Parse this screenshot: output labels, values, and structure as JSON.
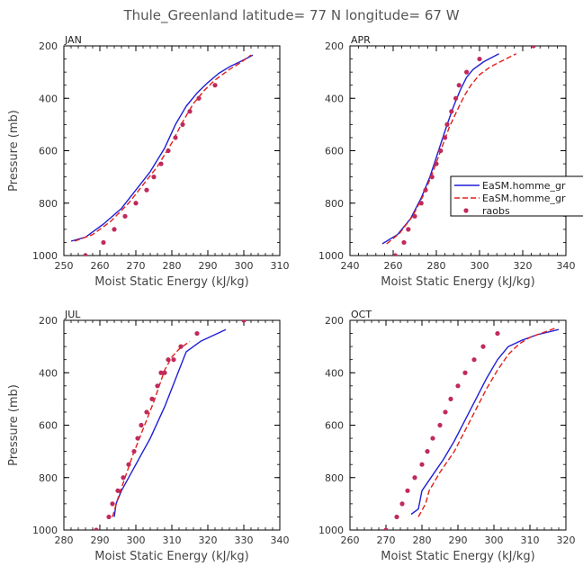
{
  "title": "Thule_Greenland   latitude= 77 N longitude= 67 W",
  "chart_data": [
    {
      "type": "line",
      "panel": "JAN",
      "xlabel": "Moist Static Energy (kJ/kg)",
      "ylabel": "Pressure (mb)",
      "xlim": [
        250,
        310
      ],
      "ylim": [
        1000,
        200
      ],
      "xticks": [
        250,
        260,
        270,
        280,
        290,
        300,
        310
      ],
      "yticks": [
        200,
        400,
        600,
        800,
        1000
      ],
      "series": [
        {
          "name": "EaSM.homme_gr",
          "style": "solid",
          "color": "#1f1fd6",
          "x": [
            252,
            256,
            261,
            266,
            270,
            274,
            278,
            281,
            284,
            287,
            290,
            293,
            296,
            299,
            302.5
          ],
          "y": [
            945,
            930,
            880,
            820,
            750,
            680,
            590,
            500,
            430,
            380,
            340,
            305,
            280,
            260,
            235
          ]
        },
        {
          "name": "EaSM.homme_gr",
          "style": "dashed",
          "color": "#e0201a",
          "x": [
            253,
            258,
            263,
            268,
            272,
            276,
            280,
            283,
            286,
            289,
            292,
            296,
            299,
            302
          ],
          "y": [
            945,
            920,
            870,
            800,
            730,
            660,
            570,
            490,
            420,
            370,
            330,
            290,
            265,
            235
          ]
        },
        {
          "name": "raobs",
          "style": "markers",
          "color": "#c02a5a",
          "x": [
            256,
            261,
            264,
            267,
            270,
            273,
            275,
            277,
            279,
            281,
            283,
            285,
            287.5,
            292
          ],
          "y": [
            1000,
            950,
            900,
            850,
            800,
            750,
            700,
            650,
            600,
            550,
            500,
            450,
            400,
            350
          ]
        }
      ]
    },
    {
      "type": "line",
      "panel": "APR",
      "xlabel": "Moist Static Energy (kJ/kg)",
      "ylabel": "",
      "xlim": [
        240,
        340
      ],
      "ylim": [
        1000,
        200
      ],
      "xticks": [
        240,
        260,
        280,
        300,
        320,
        340
      ],
      "yticks": [
        200,
        400,
        600,
        800,
        1000
      ],
      "series": [
        {
          "name": "EaSM.homme_gr",
          "style": "solid",
          "color": "#1f1fd6",
          "x": [
            255,
            262,
            268,
            273,
            277,
            281,
            285,
            288,
            291,
            294,
            297,
            302,
            309
          ],
          "y": [
            955,
            920,
            860,
            780,
            700,
            600,
            500,
            430,
            370,
            320,
            290,
            260,
            230
          ]
        },
        {
          "name": "EaSM.homme_gr",
          "style": "dashed",
          "color": "#e0201a",
          "x": [
            257,
            263,
            269,
            274,
            278,
            282,
            286,
            290,
            293,
            296,
            300,
            305,
            311,
            317
          ],
          "y": [
            955,
            915,
            850,
            770,
            690,
            600,
            510,
            440,
            390,
            350,
            310,
            280,
            255,
            230
          ]
        },
        {
          "name": "raobs",
          "style": "markers",
          "color": "#c02a5a",
          "x": [
            261,
            265,
            267,
            270,
            273,
            275,
            278,
            280,
            282,
            284,
            285,
            287,
            289,
            290.5,
            294,
            300,
            325
          ],
          "y": [
            1000,
            950,
            900,
            850,
            800,
            750,
            700,
            650,
            600,
            550,
            500,
            450,
            400,
            350,
            300,
            250,
            200
          ]
        }
      ],
      "legend": {
        "location": "right",
        "entries": [
          "EaSM.homme_gr",
          "EaSM.homme_gr",
          "raobs"
        ]
      }
    },
    {
      "type": "line",
      "panel": "JUL",
      "xlabel": "Moist Static Energy (kJ/kg)",
      "ylabel": "Pressure (mb)",
      "xlim": [
        280,
        340
      ],
      "ylim": [
        1000,
        200
      ],
      "xticks": [
        280,
        290,
        300,
        310,
        320,
        330,
        340
      ],
      "yticks": [
        200,
        400,
        600,
        800,
        1000
      ],
      "series": [
        {
          "name": "EaSM.homme_gr",
          "style": "solid",
          "color": "#1f1fd6",
          "x": [
            294,
            294.5,
            296,
            298,
            300,
            302,
            304,
            306,
            308,
            310,
            312,
            314,
            318,
            325
          ],
          "y": [
            950,
            900,
            850,
            800,
            750,
            700,
            650,
            590,
            530,
            460,
            390,
            320,
            280,
            235
          ]
        },
        {
          "name": "EaSM.homme_gr",
          "style": "dashed",
          "color": "#e0201a",
          "x": [
            293.5,
            295,
            297,
            299,
            301,
            303,
            305,
            306.5,
            308,
            310,
            312,
            315
          ],
          "y": [
            950,
            880,
            800,
            720,
            650,
            580,
            510,
            450,
            390,
            340,
            310,
            280
          ]
        },
        {
          "name": "raobs",
          "style": "markers",
          "color": "#c02a5a",
          "x": [
            289,
            292.5,
            293.5,
            295,
            296.5,
            298,
            299.5,
            300.5,
            301.5,
            303,
            304.5,
            306,
            307,
            308,
            309,
            310.5,
            312.5,
            317,
            330
          ],
          "y": [
            1000,
            950,
            900,
            850,
            800,
            750,
            700,
            650,
            600,
            550,
            500,
            450,
            400,
            400,
            350,
            350,
            300,
            250,
            200
          ]
        }
      ]
    },
    {
      "type": "line",
      "panel": "OCT",
      "xlabel": "Moist Static Energy (kJ/kg)",
      "ylabel": "",
      "xlim": [
        260,
        320
      ],
      "ylim": [
        1000,
        200
      ],
      "xticks": [
        260,
        270,
        280,
        290,
        300,
        310,
        320
      ],
      "yticks": [
        200,
        400,
        600,
        800,
        1000
      ],
      "series": [
        {
          "name": "EaSM.homme_gr",
          "style": "solid",
          "color": "#1f1fd6",
          "x": [
            277,
            279,
            280,
            283,
            286,
            289,
            292,
            295,
            298,
            301,
            304,
            308,
            312,
            318
          ],
          "y": [
            940,
            920,
            850,
            790,
            730,
            660,
            580,
            500,
            420,
            350,
            300,
            275,
            255,
            235
          ]
        },
        {
          "name": "EaSM.homme_gr",
          "style": "dashed",
          "color": "#e0201a",
          "x": [
            279,
            281,
            282,
            285,
            289,
            292,
            295,
            298,
            301,
            304,
            307,
            310,
            314,
            317
          ],
          "y": [
            950,
            900,
            850,
            780,
            700,
            620,
            540,
            460,
            390,
            330,
            290,
            265,
            245,
            230
          ]
        },
        {
          "name": "raobs",
          "style": "markers",
          "color": "#c02a5a",
          "x": [
            270,
            273,
            274.5,
            276,
            278,
            280,
            281.5,
            283,
            285,
            286.5,
            288,
            290,
            292,
            294.5,
            297,
            301
          ],
          "y": [
            1000,
            950,
            900,
            850,
            800,
            750,
            700,
            650,
            600,
            550,
            500,
            450,
            400,
            350,
            300,
            250
          ]
        }
      ]
    }
  ]
}
